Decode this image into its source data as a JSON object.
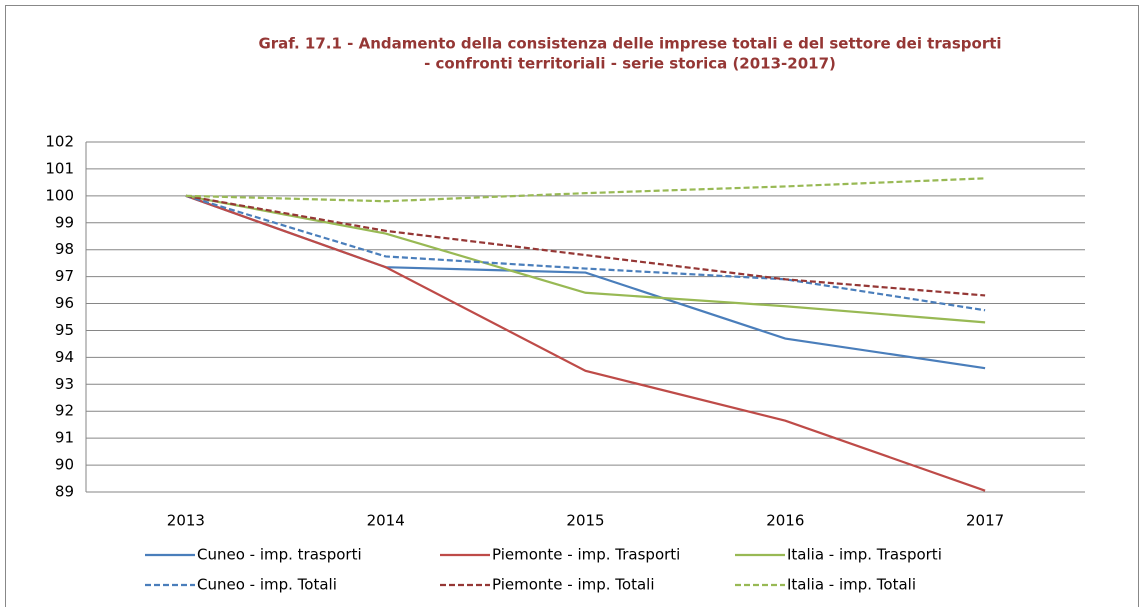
{
  "chart_data": {
    "type": "line",
    "title": [
      "Graf. 17.1 - Andamento della consistenza delle imprese totali e del settore dei trasporti",
      "- confronti territoriali - serie storica (2013-2017)"
    ],
    "categories": [
      "2013",
      "2014",
      "2015",
      "2016",
      "2017"
    ],
    "series": [
      {
        "name": "Cuneo - imp. trasporti",
        "color": "#4a7ebb",
        "dashed": false,
        "values": [
          100,
          97.35,
          97.15,
          94.7,
          93.6
        ]
      },
      {
        "name": "Piemonte - imp. Trasporti",
        "color": "#be4b48",
        "dashed": false,
        "values": [
          100,
          97.35,
          93.5,
          91.65,
          89.05
        ]
      },
      {
        "name": "Italia - imp. Trasporti",
        "color": "#98b954",
        "dashed": false,
        "values": [
          100,
          98.6,
          96.4,
          95.9,
          95.3
        ]
      },
      {
        "name": "Cuneo - imp. Totali",
        "color": "#4a7ebb",
        "dashed": true,
        "values": [
          100,
          97.75,
          97.3,
          96.9,
          95.75
        ]
      },
      {
        "name": "Piemonte - imp. Totali",
        "color": "#953735",
        "dashed": true,
        "values": [
          100,
          98.7,
          97.8,
          96.9,
          96.3
        ]
      },
      {
        "name": "Italia - imp. Totali",
        "color": "#98b954",
        "dashed": true,
        "values": [
          100,
          99.8,
          100.1,
          100.35,
          100.65
        ]
      }
    ],
    "ylim": [
      89,
      102
    ],
    "yticks": [
      89,
      90,
      91,
      92,
      93,
      94,
      95,
      96,
      97,
      98,
      99,
      100,
      101,
      102
    ],
    "grid": true,
    "legend": "bottom"
  }
}
